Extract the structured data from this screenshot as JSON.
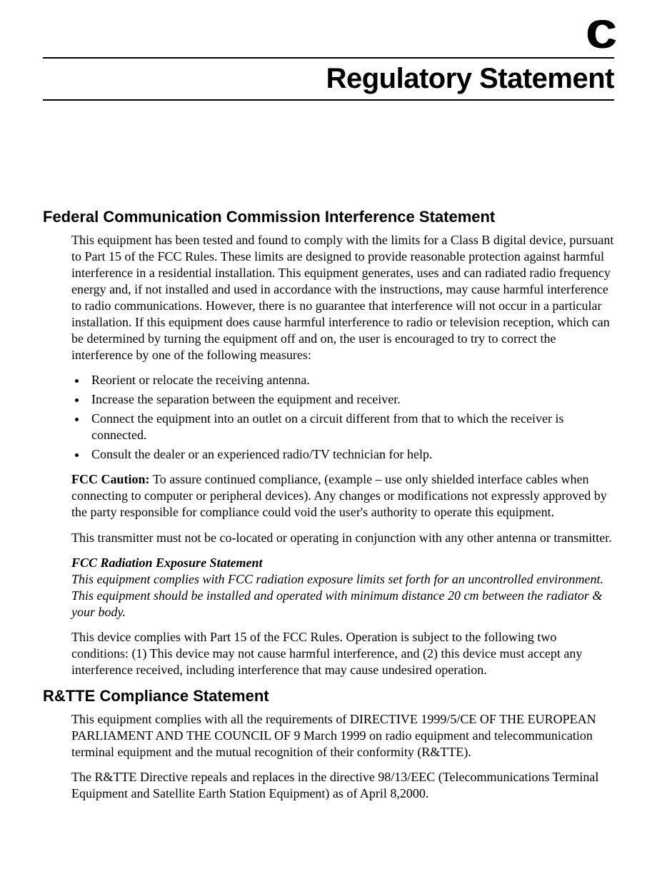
{
  "style": {
    "page_background": "#ffffff",
    "text_color": "#000000",
    "rule_color": "#000000",
    "heading_font": "Arial, Helvetica, sans-serif",
    "body_font": "\"Times New Roman\", Times, serif",
    "appendix_badge_fontsize": 56,
    "chapter_title_fontsize": 40,
    "section_heading_fontsize": 22,
    "body_fontsize": 18
  },
  "appendix_letter": "C",
  "chapter_title": "Regulatory Statement",
  "sections": [
    {
      "heading": "Federal Communication Commission Interference Statement",
      "paras": {
        "intro": "This equipment has been tested and found to comply with the limits for a Class B digital device, pursuant to Part 15 of the FCC Rules. These limits are designed to provide reasonable protection against harmful interference in a residential installation. This equipment generates, uses and can radiated radio frequency energy and, if not installed and used in accordance with the instructions, may cause harmful interference to radio communications. However, there is no guarantee that interference will not occur in a particular installation. If this equipment does cause harmful interference to radio or television reception, which can be determined by turning the equipment off and on, the user is encouraged to try to correct the interference by one of the following measures:",
        "caution_label": "FCC Caution: ",
        "caution_body": "To assure continued compliance, (example – use only shielded interface cables when connecting to computer or peripheral devices). Any changes or modifications not expressly approved by the party responsible for compliance could void the user's authority to operate this equipment.",
        "transmitter": "This transmitter must not be co-located or operating in conjunction with any other antenna or transmitter.",
        "rad_heading": "FCC Radiation Exposure Statement",
        "rad_body": "This equipment complies with FCC radiation exposure limits set forth for an uncontrolled environment. This equipment should be installed and operated with minimum distance 20 cm between the radiator & your body.",
        "part15": "This device complies with Part 15 of the FCC Rules. Operation is subject to the following two conditions: (1) This device may not cause harmful interference, and (2) this device must accept any interference received, including interference that may cause undesired operation."
      },
      "bullets": [
        "Reorient or relocate the receiving antenna.",
        "Increase the separation between the equipment and receiver.",
        "Connect the equipment into an outlet on a circuit different from that to which the receiver is connected.",
        "Consult the dealer or an experienced radio/TV technician for help."
      ]
    },
    {
      "heading": "R&TTE Compliance Statement",
      "paras": {
        "p1": "This equipment complies with all the requirements of DIRECTIVE 1999/5/CE OF THE EUROPEAN PARLIAMENT AND THE COUNCIL OF 9 March 1999 on radio equipment and telecommunication terminal equipment and the mutual recognition of their conformity (R&TTE).",
        "p2": "The R&TTE Directive repeals and replaces in the directive 98/13/EEC (Telecommunications Terminal Equipment and Satellite Earth Station Equipment) as of April 8,2000."
      }
    }
  ]
}
